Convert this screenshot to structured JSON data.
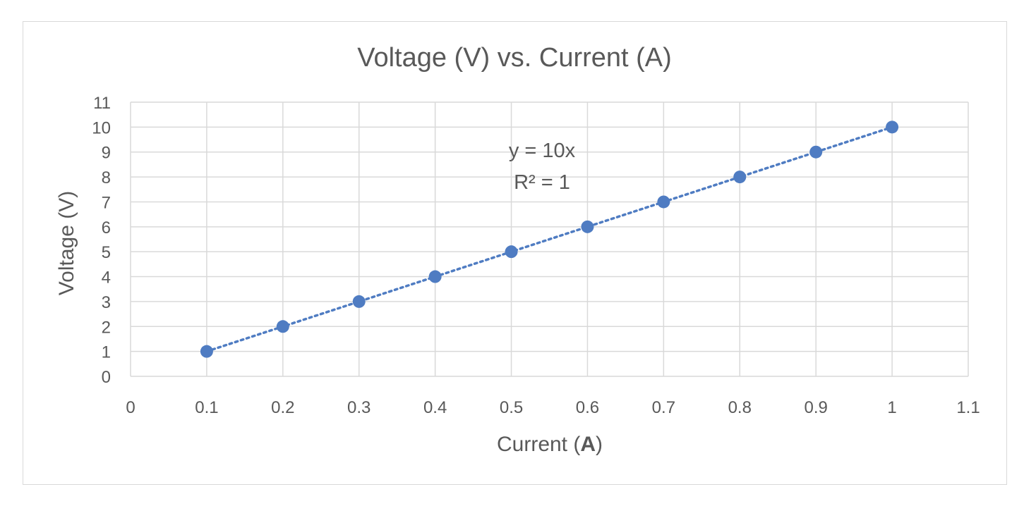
{
  "chart_data": {
    "type": "scatter",
    "title": "Voltage (V) vs. Current (A)",
    "xlabel_prefix": "Current (",
    "xlabel_bold": "A",
    "xlabel_suffix": ")",
    "ylabel": "Voltage (V)",
    "xlim": [
      0,
      1.1
    ],
    "ylim": [
      0,
      11
    ],
    "x_ticks": [
      0,
      0.1,
      0.2,
      0.3,
      0.4,
      0.5,
      0.6,
      0.7,
      0.8,
      0.9,
      1,
      1.1
    ],
    "y_ticks": [
      0,
      1,
      2,
      3,
      4,
      5,
      6,
      7,
      8,
      9,
      10,
      11
    ],
    "grid": true,
    "series": [
      {
        "x": [
          0.1,
          0.2,
          0.3,
          0.4,
          0.5,
          0.6,
          0.7,
          0.8,
          0.9,
          1
        ],
        "y": [
          1,
          2,
          3,
          4,
          5,
          6,
          7,
          8,
          9,
          10
        ],
        "color": "#4f7cc2"
      }
    ],
    "trendline": {
      "type": "linear",
      "style": "dotted",
      "color": "#4f7cc2",
      "equation": "y = 10x",
      "r_squared": "R² = 1",
      "slope": 10
    }
  }
}
